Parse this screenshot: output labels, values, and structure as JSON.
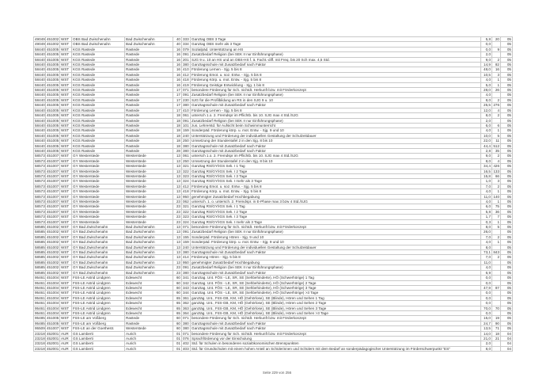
{
  "rows": [
    [
      "49049",
      "451002",
      "WST",
      "OBS Bad Zwischenahn",
      "Bad Zwischenahn",
      "40",
      "333",
      "Ganztag OBS 3 Tage",
      "5,8",
      "20",
      "05"
    ],
    [
      "49049",
      "451002",
      "WST",
      "OBS Bad Zwischenahn",
      "Bad Zwischenahn",
      "40",
      "334",
      "Ganztag OBS mehr als 3 Tage",
      "0,0",
      "",
      "05"
    ],
    [
      "58440",
      "451005",
      "WST",
      "KGS Rastede",
      "Rastede",
      "16",
      "079",
      "Sozialpäd. Unterstützung an HS",
      "0,0",
      "9",
      "05"
    ],
    [
      "58440",
      "451005",
      "WST",
      "KGS Rastede",
      "Rastede",
      "16",
      "091",
      "Zusatzbedarf Religion (bei SEK II nur Einführungsphase)",
      "2,0",
      "",
      "05"
    ],
    [
      "58440",
      "451005",
      "WST",
      "KGS Rastede",
      "Rastede",
      "16",
      "201",
      "SJG 9 u. 10 an HS und an OBS-HS f. ä. Facht.-diff. mit Freq. bis 20 Sch max. 4,5 Std.",
      "9,0",
      "2",
      "05"
    ],
    [
      "58440",
      "451005",
      "WST",
      "KGS Rastede",
      "Rastede",
      "16",
      "380",
      "Ganztagsschule mit Zusatzbedarf nach Faktor",
      "14,9",
      "82",
      "05"
    ],
    [
      "58440",
      "451005",
      "WST",
      "KGS Rastede",
      "Rastede",
      "16",
      "410",
      "Förderung Lernen - Sjg. 5 bis 8",
      "48,0",
      "16",
      "05"
    ],
    [
      "58440",
      "451005",
      "WST",
      "KGS Rastede",
      "Rastede",
      "16",
      "412",
      "Förderung Emot. u. soz. Entw. - Sjg. 5 bis 8",
      "10,5",
      "3",
      "05"
    ],
    [
      "58440",
      "451005",
      "WST",
      "KGS Rastede",
      "Rastede",
      "16",
      "418",
      "Förderung Körp. u. mot. Entw. - Sjg. 5 bis 8",
      "4,0",
      "1",
      "05"
    ],
    [
      "58440",
      "451005",
      "WST",
      "KGS Rastede",
      "Rastede",
      "16",
      "419",
      "Förderung Geistige Entwicklung - Sjg. 1 bis 8",
      "5,0",
      "1",
      "05"
    ],
    [
      "58440",
      "451005",
      "WST",
      "KGS Rastede",
      "Rastede",
      "17",
      "071",
      "besondere Förderung für Sch. nichtdt. Herkunft bzw. mit Förderkonzept",
      "28,0",
      "26",
      "05"
    ],
    [
      "58440",
      "451005",
      "WST",
      "KGS Rastede",
      "Rastede",
      "17",
      "091",
      "Zusatzbedarf Religion (bei SEK II nur Einführungsphase)",
      "4,0",
      "",
      "05"
    ],
    [
      "58440",
      "451005",
      "WST",
      "KGS Rastede",
      "Rastede",
      "17",
      "230",
      "SJG für die Profilbildung an RS in den SJG 9 u. 10",
      "8,0",
      "2",
      "05"
    ],
    [
      "58440",
      "451005",
      "WST",
      "KGS Rastede",
      "Rastede",
      "17",
      "380",
      "Ganztagsschule mit Zusatzbedarf nach Faktor",
      "25,5",
      "276",
      "05"
    ],
    [
      "58440",
      "451005",
      "WST",
      "KGS Rastede",
      "Rastede",
      "17",
      "410",
      "Förderung Lernen - Sjg. 5 bis 8",
      "12,0",
      "4",
      "05"
    ],
    [
      "58440",
      "451005",
      "WST",
      "KGS Rastede",
      "Rastede",
      "18",
      "061",
      "untersch 1.o. 2. Fremdspr im Pflichtb. bis 10. SJG max 4 Std./SJG",
      "8,0",
      "2",
      "05"
    ],
    [
      "58440",
      "451005",
      "WST",
      "KGS Rastede",
      "Rastede",
      "18",
      "091",
      "Zusatzbedarf Religion (bei SEK II nur Einführungsphase)",
      "2,0",
      "",
      "05"
    ],
    [
      "58440",
      "451005",
      "WST",
      "KGS Rastede",
      "Rastede",
      "18",
      "101",
      "zus. Lehrerstd. für Aufsicht beim Schwimmunterricht",
      "6,0",
      "6",
      "05"
    ],
    [
      "58440",
      "451005",
      "WST",
      "KGS Rastede",
      "Rastede",
      "18",
      "159",
      "Sonderpäd. Förderung körp. u. mot. Entw. - Sjg. 9 und 10",
      "4,0",
      "1",
      "05"
    ],
    [
      "58440",
      "451005",
      "WST",
      "KGS Rastede",
      "Rastede",
      "18",
      "240",
      "Unterstützung und Förderung der individuellen Gestaltung der Schulzeitdauer",
      "10,0",
      "5",
      "05"
    ],
    [
      "58440",
      "451005",
      "WST",
      "KGS Rastede",
      "Rastede",
      "18",
      "250",
      "Umsetzung der Stundentafel 2 in den Sjg. 8 bis 10",
      "22,0",
      "11",
      "05"
    ],
    [
      "58440",
      "451005",
      "WST",
      "KGS Rastede",
      "Rastede",
      "18",
      "380",
      "Ganztagsschule mit Zusatzbedarf nach Faktor",
      "44,4",
      "512",
      "05"
    ],
    [
      "58440",
      "451005",
      "WST",
      "KGS Rastede",
      "Rastede",
      "28",
      "380",
      "Ganztagsschule mit Zusatzbedarf nach Faktor",
      "2,8",
      "35",
      "05"
    ],
    [
      "58573",
      "451007",
      "WST",
      "GY Westerstede",
      "Westerstede",
      "13",
      "061",
      "untersch 1.o. 2. Fremdspr im Pflichtb. bis 10. SJG max 4 Std./SJG",
      "9,0",
      "2",
      "05"
    ],
    [
      "58573",
      "451007",
      "WST",
      "GY Westerstede",
      "Westerstede",
      "13",
      "250",
      "Umsetzung der Stundentafel 2 in den Sjg. 8 bis 10",
      "8,0",
      "4",
      "05"
    ],
    [
      "58573",
      "451007",
      "WST",
      "GY Westerstede",
      "Westerstede",
      "13",
      "321",
      "Ganztag RS/GY/IGS Sek. I 1 Tag",
      "34,4",
      "426",
      "05"
    ],
    [
      "58573",
      "451007",
      "WST",
      "GY Westerstede",
      "Westerstede",
      "13",
      "322",
      "Ganztag RS/GY/IGS Sek. I 2 Tage",
      "16,5",
      "133",
      "05"
    ],
    [
      "58573",
      "451007",
      "WST",
      "GY Westerstede",
      "Westerstede",
      "13",
      "323",
      "Ganztag RS/GY/IGS Sek. I 3 Tage",
      "15,8",
      "66",
      "05"
    ],
    [
      "58573",
      "451007",
      "WST",
      "GY Westerstede",
      "Westerstede",
      "13",
      "324",
      "Ganztag RS/GY/IGS Sek. I mehr als 3 Tage",
      "1,0",
      "3",
      "05"
    ],
    [
      "58573",
      "451007",
      "WST",
      "GY Westerstede",
      "Westerstede",
      "13",
      "412",
      "Förderung Emot. u. soz. Entw. - Sjg. 5 bis 8",
      "7,0",
      "2",
      "05"
    ],
    [
      "58573",
      "451007",
      "WST",
      "GY Westerstede",
      "Westerstede",
      "13",
      "418",
      "Förderung Körp. u. mot. Entw. - Sjg. 5 bis 8",
      "4,0",
      "1",
      "05"
    ],
    [
      "58573",
      "451007",
      "WST",
      "GY Westerstede",
      "Westerstede",
      "13",
      "950",
      "genehmigter Zusatzbedarf Hochbegabung",
      "11,0",
      "140",
      "05"
    ],
    [
      "58573",
      "451007",
      "WST",
      "GY Westerstede",
      "Westerstede",
      "23",
      "062",
      "untersch. 1. o. untersch. 2. Fremdspr. in E-Phase max 3 bzw 4 Std./SJG",
      "4,0",
      "1",
      "05"
    ],
    [
      "58573",
      "451007",
      "WST",
      "GY Westerstede",
      "Westerstede",
      "23",
      "321",
      "Ganztag RS/GY/IGS Sek. I 1 Tag",
      "6,0",
      "75",
      "05"
    ],
    [
      "58573",
      "451007",
      "WST",
      "GY Westerstede",
      "Westerstede",
      "23",
      "322",
      "Ganztag RS/GY/IGS Sek. I 2 Tage",
      "5,8",
      "36",
      "05"
    ],
    [
      "58573",
      "451007",
      "WST",
      "GY Westerstede",
      "Westerstede",
      "23",
      "323",
      "Ganztag RS/GY/IGS Sek. I 3 Tage",
      "1,7",
      "7",
      "05"
    ],
    [
      "58573",
      "451007",
      "WST",
      "GY Westerstede",
      "Westerstede",
      "23",
      "324",
      "Ganztag RS/GY/IGS Sek. I mehr als 3 Tage",
      "0,3",
      "1",
      "05"
    ],
    [
      "58585",
      "451002",
      "WST",
      "GY Bad Zwischenahn",
      "Bad Zwischenahn",
      "13",
      "071",
      "besondere Förderung für Sch. nichtdt. Herkunft bzw. mit Förderkonzept",
      "8,0",
      "5",
      "05"
    ],
    [
      "58585",
      "451002",
      "WST",
      "GY Bad Zwischenahn",
      "Bad Zwischenahn",
      "13",
      "091",
      "Zusatzbedarf Religion (bei SEK II nur Einführungsphase)",
      "26,0",
      "",
      "05"
    ],
    [
      "58585",
      "451002",
      "WST",
      "GY Bad Zwischenahn",
      "Bad Zwischenahn",
      "13",
      "155",
      "Sonderpäd. Förderung Hören - Sjg. 9 und 10",
      "7,0",
      "2",
      "05"
    ],
    [
      "58585",
      "451002",
      "WST",
      "GY Bad Zwischenahn",
      "Bad Zwischenahn",
      "13",
      "159",
      "Sonderpäd. Förderung körp. u. mot. Entw. - Sjg. 9 und 10",
      "4,0",
      "1",
      "05"
    ],
    [
      "58585",
      "451002",
      "WST",
      "GY Bad Zwischenahn",
      "Bad Zwischenahn",
      "13",
      "240",
      "Unterstützung und Förderung der individuellen Gestaltung der Schulzeitdauer",
      "8,0",
      "",
      "05"
    ],
    [
      "58585",
      "451002",
      "WST",
      "GY Bad Zwischenahn",
      "Bad Zwischenahn",
      "13",
      "380",
      "Ganztagsschule mit Zusatzbedarf nach Faktor",
      "73,1",
      "843",
      "05"
    ],
    [
      "58585",
      "451002",
      "WST",
      "GY Bad Zwischenahn",
      "Bad Zwischenahn",
      "13",
      "414",
      "Förderung Hören - Sjg. 5 bis 8",
      "7,0",
      "2",
      "05"
    ],
    [
      "58585",
      "451002",
      "WST",
      "GY Bad Zwischenahn",
      "Bad Zwischenahn",
      "13",
      "950",
      "genehmigter Zusatzbedarf Hochbegabung",
      "11,0",
      "",
      "05"
    ],
    [
      "58585",
      "451002",
      "WST",
      "GY Bad Zwischenahn",
      "Bad Zwischenahn",
      "23",
      "091",
      "Zusatzbedarf Religion (bei SEK II nur Einführungsphase)",
      "4,0",
      "",
      "05"
    ],
    [
      "58585",
      "451002",
      "WST",
      "GY Bad Zwischenahn",
      "Bad Zwischenahn",
      "23",
      "380",
      "Ganztagsschule mit Zusatzbedarf nach Faktor",
      "6,9",
      "",
      "05"
    ],
    [
      "95461",
      "451004",
      "WST",
      "FöS-LE Astrid Lindgren",
      "Edewecht",
      "60",
      "341",
      "Ganztag. Unt. FÖS - LE, SR, SE (Sehbehinderte), HÖ (Schwerhörige) 1 Tag",
      "0,0",
      "",
      "05"
    ],
    [
      "95461",
      "451004",
      "WST",
      "FöS-LE Astrid Lindgren",
      "Edewecht",
      "60",
      "342",
      "Ganztag. Unt. FÖS - LE, SR, SE (Sehbehinderte), HÖ (Schwerhörige) 2 Tage",
      "0,0",
      "",
      "05"
    ],
    [
      "95461",
      "451004",
      "WST",
      "FöS-LE Astrid Lindgren",
      "Edewecht",
      "60",
      "343",
      "Ganztag. Unt. FÖS - LE, SR, SE (Sehbehinderte), HÖ (Schwerhörige) 3 Tage",
      "47,9",
      "87",
      "05"
    ],
    [
      "95461",
      "451004",
      "WST",
      "FöS-LE Astrid Lindgren",
      "Edewecht",
      "60",
      "344",
      "Ganztag. Unt. FÖS - LE, SR, SE (Sehbehinderte), HÖ (Schwerhörige) >3 Tage",
      "0,0",
      "",
      "05"
    ],
    [
      "95461",
      "451004",
      "WST",
      "FöS-LE Astrid Lindgren",
      "Edewecht",
      "65",
      "361",
      "ganztäg. Unt., FöS-GB, KM, HÖ (Gehörlose), SE (Blinde), Hören und Sehen 1 Tag",
      "0,0",
      "",
      "05"
    ],
    [
      "95461",
      "451004",
      "WST",
      "FöS-LE Astrid Lindgren",
      "Edewecht",
      "65",
      "362",
      "ganztäg. Unt., FöS-GB, KM, HÖ (Gehörlose), SE (Blinde), Hören und Sehen 2 Tage",
      "0,0",
      "",
      "05"
    ],
    [
      "95461",
      "451004",
      "WST",
      "FöS-LE Astrid Lindgren",
      "Edewecht",
      "65",
      "363",
      "ganztäg. Unt., FöS-GB, KM, HÖ (Gehörlose), SE (Blinde), Hören und Sehen 3 Tage",
      "70,0",
      "70",
      "05"
    ],
    [
      "95461",
      "451004",
      "WST",
      "FöS-LE Astrid Lindgren",
      "Edewecht",
      "65",
      "364",
      "ganztäg. Unt., FöS-GB, KM, HÖ (Gehörlose), SE (Blinde), Hören und Sehen >3 Tage",
      "0,0",
      "",
      "05"
    ],
    [
      "95485",
      "451005",
      "WST",
      "FöS-LE am Voßberg",
      "Rastede",
      "60",
      "071",
      "besondere Förderung für Sch. nichtdt. Herkunft bzw. mit Förderkonzept",
      "15,0",
      "19",
      "05"
    ],
    [
      "95485",
      "451005",
      "WST",
      "FöS-LE am Voßberg",
      "Rastede",
      "60",
      "380",
      "Ganztagsschule mit Zusatzbedarf nach Faktor",
      "24,7",
      "90",
      "05"
    ],
    [
      "95509",
      "451007",
      "WST",
      "FöS-LE an der Goethestr.",
      "Westerstede",
      "60",
      "380",
      "Ganztagsschule mit Zusatzbedarf nach Faktor",
      "13,5",
      "71",
      "05"
    ],
    [
      "23218",
      "452001",
      "AUR",
      "GS Lamberti",
      "Aurich",
      "01",
      "071",
      "besondere Förderung für Sch. nichtdt. Herkunft bzw. mit Förderkonzept",
      "14,0",
      "18",
      "04"
    ],
    [
      "23218",
      "452001",
      "AUR",
      "GS Lamberti",
      "Aurich",
      "01",
      "076",
      "Sprachförderung vor der Einschulung",
      "21,0",
      "21",
      "04"
    ],
    [
      "23218",
      "452001",
      "AUR",
      "GS Lamberti",
      "Aurich",
      "01",
      "402",
      "Std. für Schulen in besonderen sozialökonomischen Brennpunkten",
      "2,0",
      "",
      "04"
    ],
    [
      "23218",
      "452001",
      "AUR",
      "GS Lamberti",
      "Aurich",
      "01",
      "403",
      "Std. für Grundschulen mit einem hohen Anteil an Schülerinnen und Schülern mit dem Bedarf an sonderpädagogischer Unterstützung im Förderschwerpunkt \"ES\"",
      "8,0",
      "",
      "04"
    ]
  ],
  "footer": {
    "page_label": "Seite 229 von 256"
  }
}
